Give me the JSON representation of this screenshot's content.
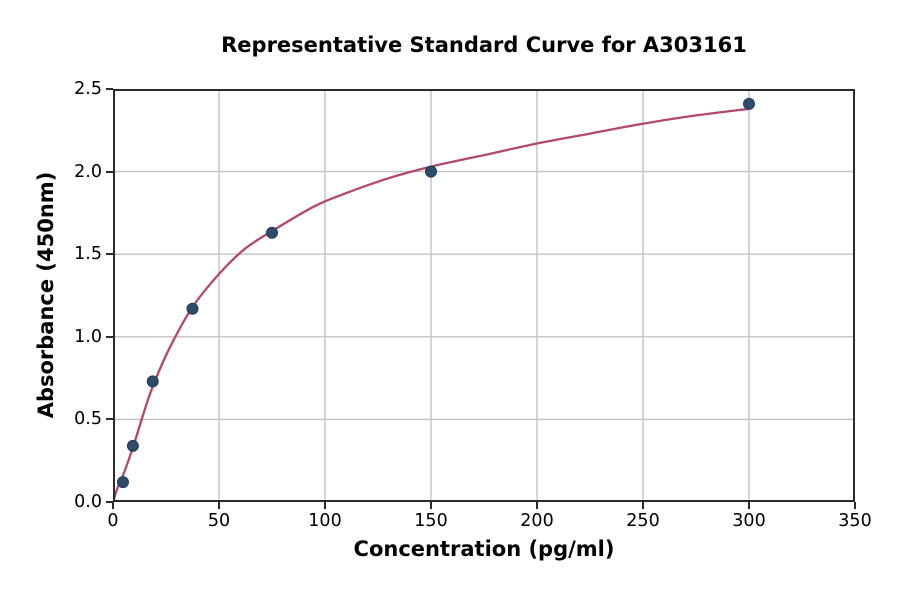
{
  "chart_data": {
    "type": "scatter",
    "title": "Representative Standard Curve for A303161",
    "xlabel": "Concentration (pg/ml)",
    "ylabel": "Absorbance (450nm)",
    "xlim": [
      0,
      350
    ],
    "ylim": [
      0,
      2.5
    ],
    "xticks": [
      0,
      50,
      100,
      150,
      200,
      250,
      300,
      350
    ],
    "yticks": [
      0,
      0.5,
      1,
      1.5,
      2,
      2.5
    ],
    "xtick_labels": [
      "0",
      "50",
      "100",
      "150",
      "200",
      "250",
      "300",
      "350"
    ],
    "ytick_labels": [
      "0.0",
      "0.5",
      "1.0",
      "1.5",
      "2.0",
      "2.5"
    ],
    "grid": true,
    "legend": "none",
    "points": [
      {
        "x": 4.69,
        "y": 0.12
      },
      {
        "x": 9.38,
        "y": 0.34
      },
      {
        "x": 18.75,
        "y": 0.73
      },
      {
        "x": 37.5,
        "y": 1.17
      },
      {
        "x": 75,
        "y": 1.63
      },
      {
        "x": 150,
        "y": 2.0
      },
      {
        "x": 300,
        "y": 2.41
      }
    ],
    "fit_curve": [
      [
        0,
        0
      ],
      [
        2,
        0.08
      ],
      [
        4.69,
        0.16
      ],
      [
        9.38,
        0.33
      ],
      [
        14,
        0.52
      ],
      [
        18.75,
        0.7
      ],
      [
        27,
        0.94
      ],
      [
        37.5,
        1.18
      ],
      [
        50,
        1.38
      ],
      [
        62,
        1.53
      ],
      [
        75,
        1.64
      ],
      [
        95,
        1.79
      ],
      [
        110,
        1.87
      ],
      [
        130,
        1.96
      ],
      [
        150,
        2.03
      ],
      [
        175,
        2.1
      ],
      [
        200,
        2.17
      ],
      [
        225,
        2.23
      ],
      [
        250,
        2.29
      ],
      [
        275,
        2.34
      ],
      [
        300,
        2.38
      ]
    ],
    "colors": {
      "curve": "#b5476e",
      "marker": "#2d4c6b",
      "marker_edge": "#203e59",
      "grid": "#c2c2c2",
      "spine": "#2b2b2b",
      "text": "#000000"
    }
  }
}
